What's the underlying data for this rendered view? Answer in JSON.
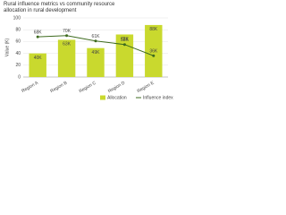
{
  "chart_data": {
    "type": "combo",
    "title": "Rural influence metrics vs community resource allocation in rural development",
    "y_label": "Value (K)",
    "categories": [
      "Region A",
      "Region B",
      "Region C",
      "Region D",
      "Region E"
    ],
    "series": [
      {
        "name": "Allocation",
        "type": "bar",
        "color": "#c9d92e",
        "values": [
          40,
          63,
          49,
          72,
          88
        ],
        "value_labels": [
          "40K",
          "63K",
          "49K",
          "72K",
          "88K"
        ]
      },
      {
        "name": "Influence index",
        "type": "line",
        "color": "#3e6b1f",
        "values": [
          68,
          70,
          61,
          55,
          36
        ],
        "value_labels": [
          "68K",
          "70K",
          "61K",
          "55K",
          "36K"
        ]
      }
    ],
    "ylim": [
      0,
      100
    ],
    "yticks": [
      0,
      20,
      40,
      60,
      80,
      100
    ],
    "grid": true,
    "legend": "bottom-right"
  }
}
